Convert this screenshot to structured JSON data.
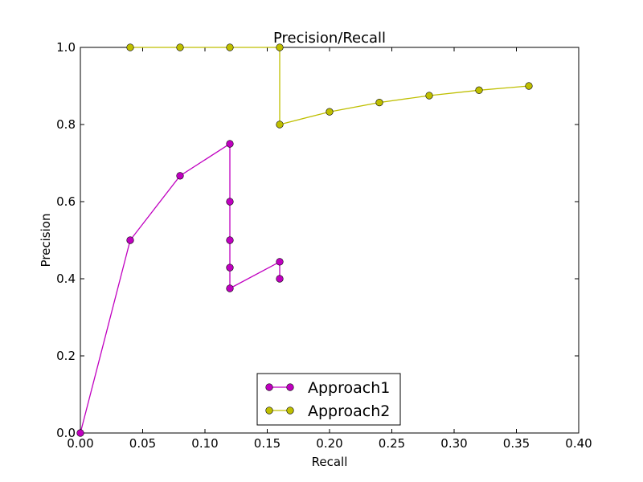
{
  "chart_data": {
    "type": "line",
    "title": "Precision/Recall",
    "xlabel": "Recall",
    "ylabel": "Precision",
    "xlim": [
      0.0,
      0.4
    ],
    "ylim": [
      0.0,
      1.0
    ],
    "xticks": [
      "0.00",
      "0.05",
      "0.10",
      "0.15",
      "0.20",
      "0.25",
      "0.30",
      "0.35",
      "0.40"
    ],
    "yticks": [
      "0.0",
      "0.2",
      "0.4",
      "0.6",
      "0.8",
      "1.0"
    ],
    "grid": false,
    "legend_position": "bottom-center",
    "series": [
      {
        "name": "Approach1",
        "color": "#c000c0",
        "x": [
          0.0,
          0.04,
          0.08,
          0.12,
          0.12,
          0.12,
          0.12,
          0.12,
          0.16,
          0.16
        ],
        "y": [
          0.0,
          0.5,
          0.667,
          0.75,
          0.6,
          0.5,
          0.429,
          0.375,
          0.444,
          0.4
        ]
      },
      {
        "name": "Approach2",
        "color": "#bfbf00",
        "x": [
          0.04,
          0.08,
          0.12,
          0.16,
          0.16,
          0.2,
          0.24,
          0.28,
          0.32,
          0.36
        ],
        "y": [
          1.0,
          1.0,
          1.0,
          1.0,
          0.8,
          0.833,
          0.857,
          0.875,
          0.889,
          0.9
        ]
      }
    ]
  }
}
